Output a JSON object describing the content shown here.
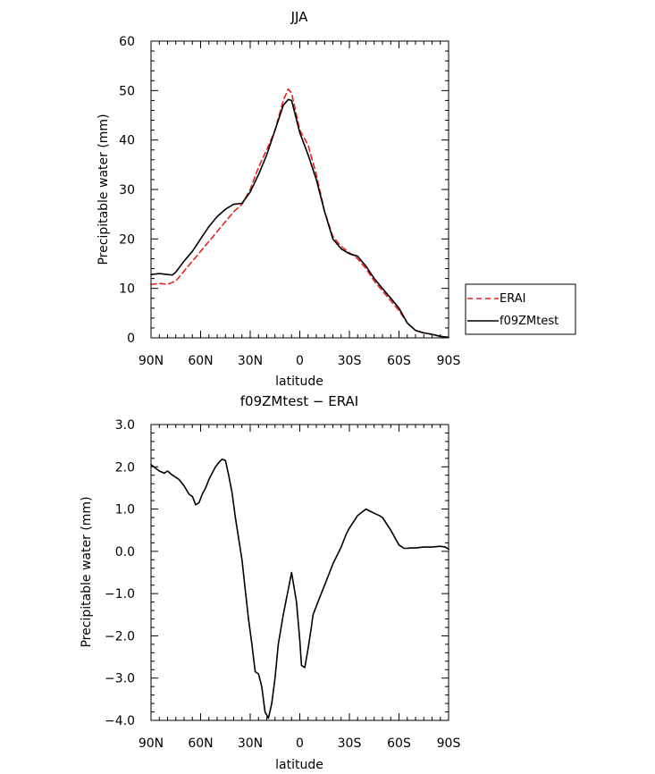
{
  "chart_data": [
    {
      "type": "line",
      "title": "JJA",
      "xlabel": "latitude",
      "ylabel": "Precipitable water (mm)",
      "xlim": [
        90,
        -90
      ],
      "ylim": [
        0,
        60
      ],
      "xticks": [
        90,
        60,
        30,
        0,
        -30,
        -60,
        -90
      ],
      "xtick_labels": [
        "90N",
        "60N",
        "30N",
        "0",
        "30S",
        "60S",
        "90S"
      ],
      "yticks": [
        0,
        10,
        20,
        30,
        40,
        50,
        60
      ],
      "ytick_labels": [
        "0",
        "10",
        "20",
        "30",
        "40",
        "50",
        "60"
      ],
      "legend": {
        "placement": "right",
        "entries": [
          {
            "label": "ERAI",
            "color": "#e8211c",
            "style": "dashed"
          },
          {
            "label": "f09ZMtest",
            "color": "#000000",
            "style": "solid"
          }
        ]
      },
      "series": [
        {
          "name": "ERAI",
          "color": "#e8211c",
          "dash": "dashed",
          "x": [
            90,
            85,
            80,
            75,
            70,
            65,
            60,
            55,
            50,
            45,
            40,
            35,
            30,
            25,
            20,
            15,
            10,
            7,
            5,
            0,
            -5,
            -10,
            -15,
            -20,
            -25,
            -30,
            -35,
            -40,
            -45,
            -50,
            -55,
            -60,
            -65,
            -70,
            -75,
            -80,
            -85,
            -90
          ],
          "y": [
            10.8,
            11,
            10.8,
            11.5,
            13.5,
            15.5,
            17.5,
            19.5,
            21.5,
            23.5,
            25.5,
            27,
            30,
            34.5,
            38,
            42,
            48,
            50.3,
            49.5,
            42,
            39,
            33,
            25.5,
            20.5,
            18.5,
            17.2,
            16,
            14,
            11.5,
            9.5,
            7.5,
            5.5,
            3,
            1.5,
            1.0,
            0.7,
            0.3,
            0.1
          ]
        },
        {
          "name": "f09ZMtest",
          "color": "#000000",
          "dash": "solid",
          "x": [
            90,
            85,
            80,
            77,
            75,
            70,
            65,
            60,
            55,
            50,
            45,
            40,
            35,
            30,
            25,
            20,
            15,
            10,
            7,
            5,
            0,
            -5,
            -10,
            -15,
            -20,
            -25,
            -30,
            -35,
            -40,
            -45,
            -50,
            -55,
            -60,
            -65,
            -70,
            -75,
            -80,
            -85,
            -90
          ],
          "y": [
            12.8,
            13,
            12.8,
            12.7,
            13.3,
            15.5,
            17.5,
            20,
            22.5,
            24.5,
            26,
            27,
            27.2,
            29.5,
            33,
            37,
            42,
            47,
            48.2,
            48,
            41.5,
            37,
            32,
            25.5,
            20,
            18,
            17,
            16.5,
            14.5,
            12,
            10,
            8,
            6,
            3,
            1.5,
            1.0,
            0.7,
            0.3,
            0.1
          ]
        }
      ]
    },
    {
      "type": "line",
      "title": "f09ZMtest − ERAI",
      "xlabel": "latitude",
      "ylabel": "Precipitable water (mm)",
      "xlim": [
        90,
        -90
      ],
      "ylim": [
        -4,
        3
      ],
      "xticks": [
        90,
        60,
        30,
        0,
        -30,
        -60,
        -90
      ],
      "xtick_labels": [
        "90N",
        "60N",
        "30N",
        "0",
        "30S",
        "60S",
        "90S"
      ],
      "yticks": [
        -4,
        -3,
        -2,
        -1,
        0,
        1,
        2,
        3
      ],
      "ytick_labels": [
        "−4.0",
        "−3.0",
        "−2.0",
        "−1.0",
        "0.0",
        "1.0",
        "2.0",
        "3.0"
      ],
      "series": [
        {
          "color": "#000000",
          "dash": "solid",
          "x": [
            90,
            85,
            82,
            80,
            77,
            75,
            73,
            70,
            67,
            65,
            63,
            61,
            59,
            57,
            55,
            53,
            51,
            49,
            47,
            45,
            43,
            41,
            39,
            37,
            35,
            33,
            31,
            29,
            27,
            25,
            23,
            21,
            19,
            17,
            15,
            13,
            10,
            7,
            5,
            2,
            0,
            -1,
            -3,
            -5,
            -7,
            -8,
            -10,
            -13,
            -15,
            -18,
            -20,
            -25,
            -28,
            -30,
            -35,
            -40,
            -45,
            -48,
            -50,
            -55,
            -60,
            -63,
            -65,
            -67,
            -70,
            -75,
            -80,
            -85,
            -88,
            -90
          ],
          "y": [
            2.05,
            1.9,
            1.85,
            1.9,
            1.8,
            1.75,
            1.7,
            1.55,
            1.35,
            1.3,
            1.1,
            1.15,
            1.35,
            1.5,
            1.7,
            1.85,
            2.0,
            2.1,
            2.18,
            2.15,
            1.8,
            1.4,
            0.8,
            0.3,
            -0.2,
            -0.9,
            -1.6,
            -2.2,
            -2.85,
            -2.9,
            -3.2,
            -3.8,
            -3.95,
            -3.6,
            -3.0,
            -2.2,
            -1.5,
            -0.9,
            -0.5,
            -1.2,
            -2.1,
            -2.7,
            -2.75,
            -2.3,
            -1.8,
            -1.5,
            -1.3,
            -1.0,
            -0.8,
            -0.5,
            -0.3,
            0.1,
            0.4,
            0.55,
            0.85,
            1.0,
            0.9,
            0.85,
            0.8,
            0.5,
            0.15,
            0.07,
            0.07,
            0.08,
            0.08,
            0.1,
            0.1,
            0.12,
            0.1,
            0.05
          ]
        }
      ]
    }
  ]
}
